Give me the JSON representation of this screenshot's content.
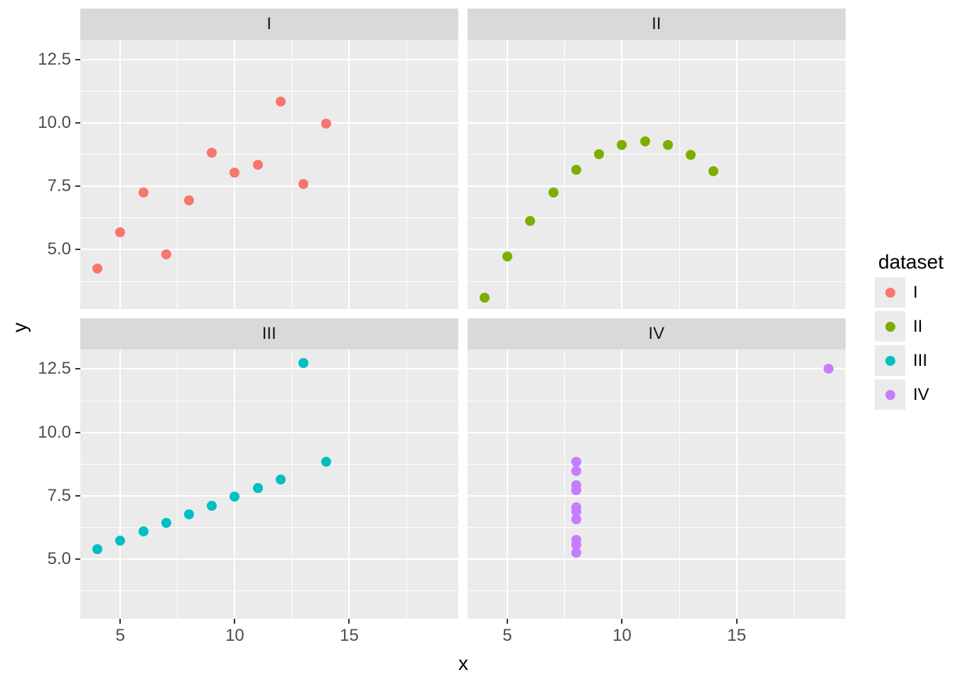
{
  "figure": {
    "x_title": "x",
    "y_title": "y"
  },
  "legend": {
    "title": "dataset",
    "entries": [
      {
        "label": "I",
        "color": "#F8766D"
      },
      {
        "label": "II",
        "color": "#7CAE00"
      },
      {
        "label": "III",
        "color": "#00BFC4"
      },
      {
        "label": "IV",
        "color": "#C77CFF"
      }
    ]
  },
  "chart_data": {
    "type": "scatter",
    "title": "",
    "xlabel": "x",
    "ylabel": "y",
    "faceted_by": "dataset",
    "facet_labels": [
      "I",
      "II",
      "III",
      "IV"
    ],
    "xlim": [
      3.25,
      19.75
    ],
    "ylim": [
      2.66,
      13.27
    ],
    "x_ticks": [
      {
        "v": 5,
        "label": "5"
      },
      {
        "v": 10,
        "label": "10"
      },
      {
        "v": 15,
        "label": "15"
      }
    ],
    "y_ticks": [
      {
        "v": 5,
        "label": "5.0"
      },
      {
        "v": 7.5,
        "label": "7.5"
      },
      {
        "v": 10,
        "label": "10.0"
      },
      {
        "v": 12.5,
        "label": "12.5"
      }
    ],
    "x_minor": [
      7.5,
      12.5,
      17.5
    ],
    "y_minor": [
      3.75,
      6.25,
      8.75,
      11.25
    ],
    "grid": "on",
    "legend_position": "right",
    "facets": [
      {
        "label": "I",
        "color": "#F8766D",
        "points": [
          [
            4,
            4.26
          ],
          [
            5,
            5.68
          ],
          [
            6,
            7.24
          ],
          [
            7,
            4.82
          ],
          [
            8,
            6.95
          ],
          [
            9,
            8.81
          ],
          [
            10,
            8.04
          ],
          [
            11,
            8.33
          ],
          [
            12,
            10.84
          ],
          [
            13,
            7.58
          ],
          [
            14,
            9.96
          ]
        ]
      },
      {
        "label": "II",
        "color": "#7CAE00",
        "points": [
          [
            4,
            3.1
          ],
          [
            5,
            4.74
          ],
          [
            6,
            6.13
          ],
          [
            7,
            7.26
          ],
          [
            8,
            8.14
          ],
          [
            9,
            8.77
          ],
          [
            10,
            9.14
          ],
          [
            11,
            9.26
          ],
          [
            12,
            9.13
          ],
          [
            13,
            8.74
          ],
          [
            14,
            8.1
          ]
        ]
      },
      {
        "label": "III",
        "color": "#00BFC4",
        "points": [
          [
            4,
            5.39
          ],
          [
            5,
            5.73
          ],
          [
            6,
            6.08
          ],
          [
            7,
            6.42
          ],
          [
            8,
            6.77
          ],
          [
            9,
            7.11
          ],
          [
            10,
            7.46
          ],
          [
            11,
            7.81
          ],
          [
            12,
            8.15
          ],
          [
            13,
            12.74
          ],
          [
            14,
            8.84
          ]
        ]
      },
      {
        "label": "IV",
        "color": "#C77CFF",
        "points": [
          [
            8,
            6.58
          ],
          [
            8,
            5.76
          ],
          [
            8,
            7.71
          ],
          [
            8,
            8.84
          ],
          [
            8,
            8.47
          ],
          [
            8,
            7.04
          ],
          [
            8,
            5.25
          ],
          [
            19,
            12.5
          ],
          [
            8,
            5.56
          ],
          [
            8,
            7.91
          ],
          [
            8,
            6.89
          ]
        ]
      }
    ]
  },
  "theme": {
    "panel_bg": "#EBEBEB",
    "strip_bg": "#D9D9D9",
    "grid_color": "#FFFFFF",
    "tick_mark": "#333333",
    "tick_label": "#4D4D4D",
    "strip_text": "#1A1A1A",
    "legend_key_bg": "#EBEBEB",
    "background": "#FFFFFF"
  }
}
